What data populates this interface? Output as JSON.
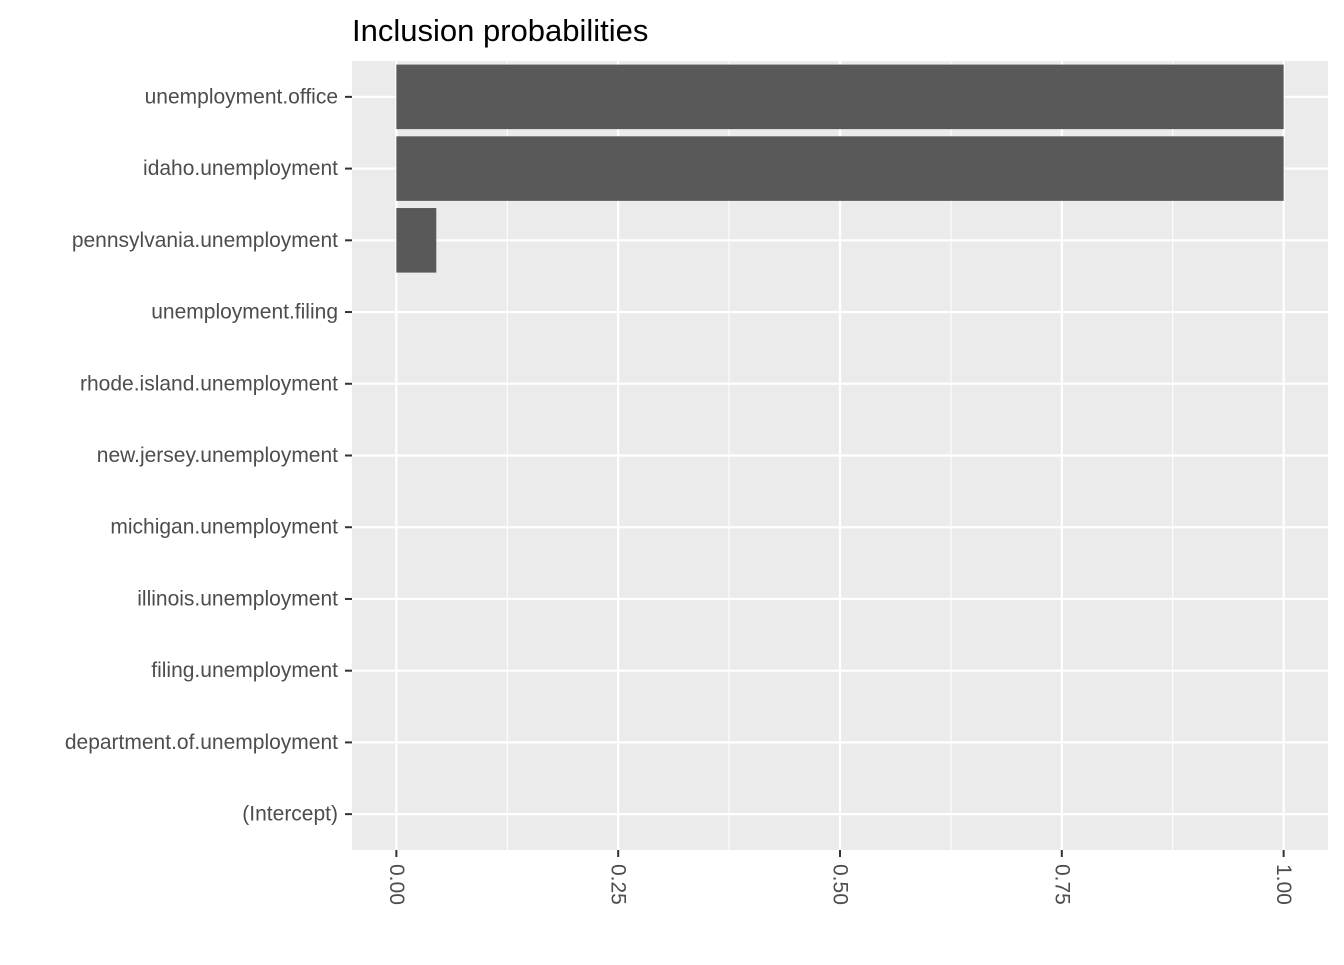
{
  "chart_data": {
    "type": "bar",
    "orientation": "horizontal",
    "title": "Inclusion probabilities",
    "xlabel": "",
    "ylabel": "",
    "categories": [
      "unemployment.office",
      "idaho.unemployment",
      "pennsylvania.unemployment",
      "unemployment.filing",
      "rhode.island.unemployment",
      "new.jersey.unemployment",
      "michigan.unemployment",
      "illinois.unemployment",
      "filing.unemployment",
      "department.of.unemployment",
      "(Intercept)"
    ],
    "values": [
      1.0,
      1.0,
      0.045,
      0,
      0,
      0,
      0,
      0,
      0,
      0,
      0
    ],
    "xlim": [
      -0.05,
      1.05
    ],
    "x_ticks": [
      "0.00",
      "0.25",
      "0.50",
      "0.75",
      "1.00"
    ],
    "x_tick_values": [
      0,
      0.25,
      0.5,
      0.75,
      1.0
    ],
    "x_tick_labels_rotated": true,
    "grid": true,
    "legend": "none",
    "colors": {
      "panel_background": "#ebebeb",
      "grid_line": "#ffffff",
      "bar_fill": "#595959",
      "tick_label": "#4d4d4d",
      "axis_tick": "#333333",
      "title": "#000000"
    }
  }
}
